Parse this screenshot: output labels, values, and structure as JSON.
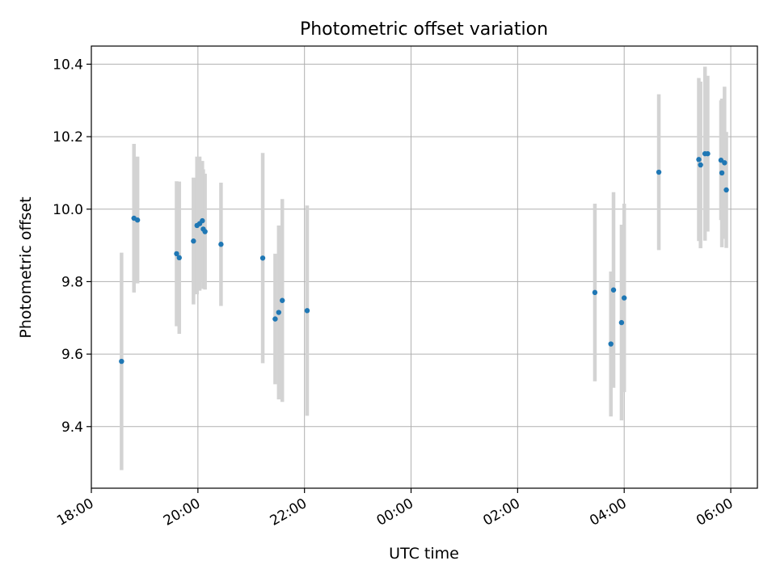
{
  "chart_data": {
    "type": "scatter",
    "title": "Photometric offset variation",
    "xlabel": "UTC time",
    "ylabel": "Photometric offset",
    "x_tick_labels": [
      "18:00",
      "20:00",
      "22:00",
      "00:00",
      "02:00",
      "04:00",
      "06:00"
    ],
    "y_tick_labels": [
      "9.4",
      "9.6",
      "9.8",
      "10.0",
      "10.2",
      "10.4"
    ],
    "x_ticks_hours": [
      18,
      20,
      22,
      24,
      26,
      28,
      30
    ],
    "y_ticks": [
      9.4,
      9.6,
      9.8,
      10.0,
      10.2,
      10.4
    ],
    "xlim_hours": [
      18,
      30.5
    ],
    "ylim": [
      9.23,
      10.45
    ],
    "grid": true,
    "x_tick_rotation": 30,
    "colors": {
      "point": "#1f77b4",
      "errorbar": "#d3d3d3",
      "grid": "#b0b0b0"
    },
    "series": [
      {
        "points": [
          {
            "t": "18:34",
            "y": 9.58,
            "err": 0.3
          },
          {
            "t": "18:48",
            "y": 9.975,
            "err": 0.205
          },
          {
            "t": "18:52",
            "y": 9.97,
            "err": 0.175
          },
          {
            "t": "19:36",
            "y": 9.877,
            "err": 0.2
          },
          {
            "t": "19:39",
            "y": 9.866,
            "err": 0.21
          },
          {
            "t": "19:55",
            "y": 9.912,
            "err": 0.175
          },
          {
            "t": "19:59",
            "y": 9.955,
            "err": 0.19
          },
          {
            "t": "20:02",
            "y": 9.96,
            "err": 0.185
          },
          {
            "t": "20:05",
            "y": 9.968,
            "err": 0.165
          },
          {
            "t": "20:06",
            "y": 9.945,
            "err": 0.165
          },
          {
            "t": "20:08",
            "y": 9.938,
            "err": 0.16
          },
          {
            "t": "20:26",
            "y": 9.903,
            "err": 0.17
          },
          {
            "t": "21:13",
            "y": 9.865,
            "err": 0.29
          },
          {
            "t": "21:27",
            "y": 9.697,
            "err": 0.18
          },
          {
            "t": "21:31",
            "y": 9.715,
            "err": 0.24
          },
          {
            "t": "21:35",
            "y": 9.748,
            "err": 0.28
          },
          {
            "t": "22:03",
            "y": 9.72,
            "err": 0.29
          },
          {
            "t": "03:27",
            "y": 9.77,
            "err": 0.245
          },
          {
            "t": "03:45",
            "y": 9.628,
            "err": 0.2
          },
          {
            "t": "03:48",
            "y": 9.777,
            "err": 0.27
          },
          {
            "t": "03:57",
            "y": 9.687,
            "err": 0.27
          },
          {
            "t": "04:00",
            "y": 9.755,
            "err": 0.26
          },
          {
            "t": "04:39",
            "y": 10.102,
            "err": 0.215
          },
          {
            "t": "05:24",
            "y": 10.137,
            "err": 0.225
          },
          {
            "t": "05:26",
            "y": 10.122,
            "err": 0.23
          },
          {
            "t": "05:31",
            "y": 10.153,
            "err": 0.24
          },
          {
            "t": "05:34",
            "y": 10.153,
            "err": 0.215
          },
          {
            "t": "05:49",
            "y": 10.135,
            "err": 0.165
          },
          {
            "t": "05:50",
            "y": 10.1,
            "err": 0.205
          },
          {
            "t": "05:53",
            "y": 10.128,
            "err": 0.21
          },
          {
            "t": "05:55",
            "y": 10.053,
            "err": 0.16
          }
        ]
      }
    ]
  }
}
